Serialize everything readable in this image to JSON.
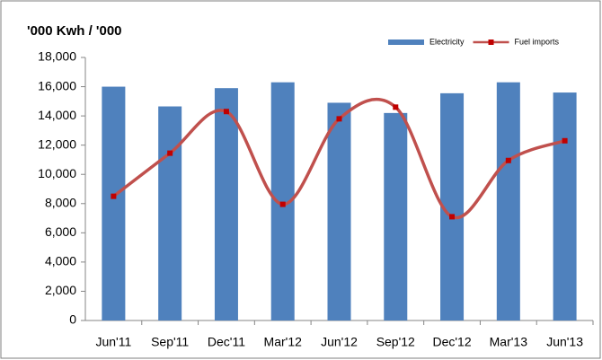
{
  "chart_data": {
    "type": "combo",
    "title": "'000 Kwh / '000",
    "categories": [
      "Jun'11",
      "Sep'11",
      "Dec'11",
      "Mar'12",
      "Jun'12",
      "Sep'12",
      "Dec'12",
      "Mar'13",
      "Jun'13"
    ],
    "series": [
      {
        "name": "Electricity",
        "type": "bar",
        "color": "#4f81bd",
        "values": [
          16000,
          14650,
          15900,
          16300,
          14900,
          14200,
          15550,
          16300,
          15600
        ]
      },
      {
        "name": "Fuel imports",
        "type": "line",
        "color": "#c0504d",
        "marker_color": "#c00000",
        "smooth": true,
        "values": [
          8500,
          11450,
          14300,
          7950,
          13800,
          14600,
          7100,
          10950,
          12300
        ]
      }
    ],
    "ylim": [
      0,
      18000
    ],
    "yticks": [
      0,
      {
        "value": 2000,
        "label": "2,000"
      },
      {
        "value": 4000,
        "label": "4,000"
      },
      {
        "value": 6000,
        "label": "6,000"
      },
      {
        "value": 8000,
        "label": "8,000"
      },
      {
        "value": 10000,
        "label": "10,000"
      },
      {
        "value": 12000,
        "label": "12,000"
      },
      {
        "value": 14000,
        "label": "14,000"
      },
      {
        "value": 16000,
        "label": "16,000"
      },
      {
        "value": 18000,
        "label": "18,000"
      }
    ],
    "grid": false,
    "legend": "top-right"
  }
}
